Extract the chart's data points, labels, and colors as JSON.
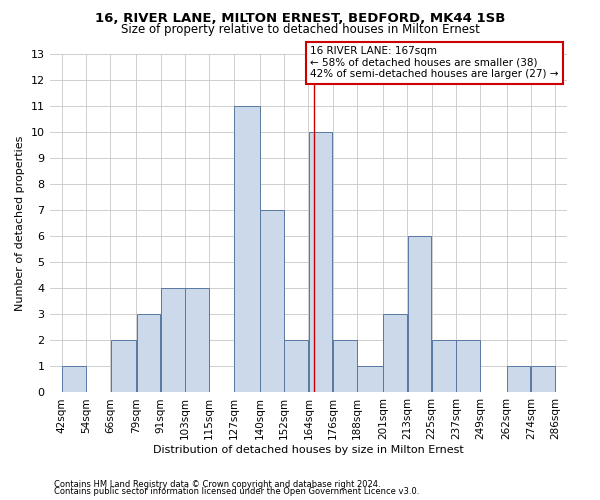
{
  "title1": "16, RIVER LANE, MILTON ERNEST, BEDFORD, MK44 1SB",
  "title2": "Size of property relative to detached houses in Milton Ernest",
  "xlabel": "Distribution of detached houses by size in Milton Ernest",
  "ylabel": "Number of detached properties",
  "footnote1": "Contains HM Land Registry data © Crown copyright and database right 2024.",
  "footnote2": "Contains public sector information licensed under the Open Government Licence v3.0.",
  "annotation_line1": "16 RIVER LANE: 167sqm",
  "annotation_line2": "← 58% of detached houses are smaller (38)",
  "annotation_line3": "42% of semi-detached houses are larger (27) →",
  "property_size": 167,
  "bin_edges": [
    42,
    54,
    66,
    79,
    91,
    103,
    115,
    127,
    140,
    152,
    164,
    176,
    188,
    201,
    213,
    225,
    237,
    249,
    262,
    274,
    286
  ],
  "counts": [
    1,
    0,
    2,
    3,
    4,
    4,
    0,
    11,
    7,
    2,
    10,
    2,
    1,
    3,
    6,
    2,
    2,
    0,
    1,
    1
  ],
  "bar_color": "#ccd9ea",
  "bar_edge_color": "#5878a0",
  "vline_color": "#cc0000",
  "annotation_box_edge": "#cc0000",
  "background_color": "#ffffff",
  "grid_color": "#c8c8c8",
  "ylim": [
    0,
    13
  ],
  "yticks": [
    0,
    1,
    2,
    3,
    4,
    5,
    6,
    7,
    8,
    9,
    10,
    11,
    12,
    13
  ],
  "title1_fontsize": 9.5,
  "title2_fontsize": 8.5,
  "xlabel_fontsize": 8.0,
  "ylabel_fontsize": 8.0,
  "tick_fontsize": 7.5,
  "annotation_fontsize": 7.5,
  "footnote_fontsize": 6.0
}
